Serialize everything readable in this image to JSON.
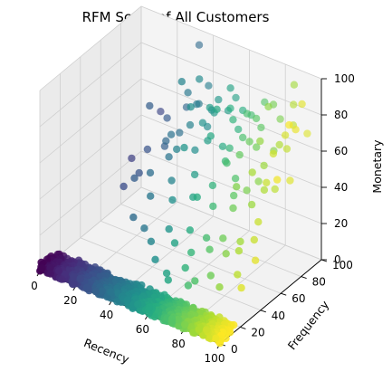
{
  "chart_data": {
    "type": "scatter3d",
    "title": "RFM Score of All Customers",
    "xlabel": "Recency",
    "ylabel": "Frequency",
    "zlabel": "Monetary",
    "xlim": [
      0,
      100
    ],
    "ylim": [
      0,
      100
    ],
    "zlim": [
      0,
      100
    ],
    "x_ticks": [
      "0",
      "20",
      "40",
      "60",
      "80",
      "100"
    ],
    "y_ticks": [
      "0",
      "20",
      "40",
      "60",
      "80",
      "100"
    ],
    "z_ticks": [
      "0",
      "20",
      "40",
      "60",
      "80",
      "100"
    ],
    "grid": true,
    "colormap": "viridis",
    "color_by": "Recency",
    "dense_cluster": {
      "x_range": [
        0,
        100
      ],
      "y_range": [
        0,
        15
      ],
      "z_range": [
        0,
        5
      ],
      "approx_points": 1400
    },
    "points": [
      [
        35,
        95,
        95
      ],
      [
        45,
        60,
        95
      ],
      [
        48,
        72,
        92
      ],
      [
        30,
        55,
        78
      ],
      [
        40,
        75,
        80
      ],
      [
        50,
        60,
        83
      ],
      [
        55,
        70,
        80
      ],
      [
        42,
        80,
        72
      ],
      [
        58,
        85,
        85
      ],
      [
        60,
        68,
        82
      ],
      [
        38,
        62,
        62
      ],
      [
        45,
        55,
        60
      ],
      [
        52,
        50,
        66
      ],
      [
        60,
        62,
        70
      ],
      [
        65,
        75,
        75
      ],
      [
        70,
        80,
        78
      ],
      [
        48,
        80,
        62
      ],
      [
        55,
        88,
        70
      ],
      [
        62,
        90,
        72
      ],
      [
        66,
        70,
        62
      ],
      [
        70,
        60,
        60
      ],
      [
        75,
        85,
        70
      ],
      [
        78,
        75,
        65
      ],
      [
        80,
        95,
        72
      ],
      [
        82,
        85,
        60
      ],
      [
        85,
        70,
        60
      ],
      [
        88,
        80,
        68
      ],
      [
        90,
        90,
        75
      ],
      [
        92,
        60,
        58
      ],
      [
        95,
        95,
        70
      ],
      [
        30,
        40,
        45
      ],
      [
        36,
        45,
        48
      ],
      [
        40,
        38,
        40
      ],
      [
        45,
        50,
        45
      ],
      [
        50,
        42,
        40
      ],
      [
        55,
        55,
        50
      ],
      [
        58,
        48,
        42
      ],
      [
        62,
        45,
        45
      ],
      [
        65,
        55,
        48
      ],
      [
        68,
        50,
        40
      ],
      [
        72,
        65,
        50
      ],
      [
        75,
        58,
        45
      ],
      [
        78,
        52,
        42
      ],
      [
        80,
        62,
        48
      ],
      [
        82,
        70,
        50
      ],
      [
        85,
        58,
        44
      ],
      [
        88,
        65,
        50
      ],
      [
        90,
        72,
        48
      ],
      [
        92,
        52,
        40
      ],
      [
        95,
        78,
        52
      ],
      [
        35,
        30,
        30
      ],
      [
        40,
        32,
        25
      ],
      [
        46,
        28,
        22
      ],
      [
        52,
        35,
        28
      ],
      [
        58,
        30,
        25
      ],
      [
        62,
        38,
        30
      ],
      [
        66,
        32,
        22
      ],
      [
        70,
        40,
        28
      ],
      [
        74,
        36,
        25
      ],
      [
        78,
        42,
        30
      ],
      [
        82,
        38,
        25
      ],
      [
        86,
        45,
        30
      ],
      [
        88,
        40,
        28
      ],
      [
        92,
        48,
        32
      ],
      [
        96,
        42,
        25
      ],
      [
        50,
        25,
        15
      ],
      [
        58,
        22,
        12
      ],
      [
        65,
        28,
        15
      ],
      [
        72,
        25,
        12
      ],
      [
        78,
        30,
        15
      ],
      [
        84,
        28,
        12
      ],
      [
        90,
        35,
        18
      ],
      [
        95,
        30,
        15
      ],
      [
        60,
        20,
        10
      ],
      [
        70,
        22,
        10
      ],
      [
        98,
        60,
        62
      ],
      [
        97,
        80,
        80
      ],
      [
        99,
        70,
        88
      ],
      [
        96,
        88,
        90
      ],
      [
        94,
        75,
        78
      ],
      [
        93,
        65,
        72
      ],
      [
        91,
        82,
        66
      ],
      [
        89,
        92,
        85
      ],
      [
        87,
        55,
        64
      ],
      [
        86,
        98,
        92
      ],
      [
        84,
        68,
        74
      ],
      [
        83,
        78,
        88
      ],
      [
        81,
        50,
        56
      ],
      [
        79,
        90,
        82
      ],
      [
        77,
        70,
        70
      ],
      [
        76,
        62,
        66
      ],
      [
        74,
        82,
        76
      ],
      [
        73,
        92,
        80
      ],
      [
        71,
        74,
        68
      ],
      [
        69,
        86,
        74
      ],
      [
        67,
        64,
        58
      ],
      [
        64,
        82,
        66
      ],
      [
        63,
        76,
        80
      ],
      [
        61,
        72,
        60
      ],
      [
        57,
        92,
        76
      ],
      [
        56,
        66,
        64
      ],
      [
        54,
        76,
        74
      ],
      [
        53,
        82,
        78
      ],
      [
        51,
        70,
        70
      ],
      [
        49,
        66,
        56
      ],
      [
        47,
        86,
        68
      ],
      [
        44,
        70,
        66
      ],
      [
        43,
        90,
        78
      ],
      [
        41,
        84,
        70
      ],
      [
        39,
        58,
        52
      ],
      [
        37,
        72,
        58
      ],
      [
        34,
        64,
        56
      ],
      [
        33,
        86,
        64
      ],
      [
        31,
        68,
        50
      ],
      [
        29,
        74,
        62
      ],
      [
        27,
        50,
        42
      ],
      [
        26,
        60,
        50
      ],
      [
        24,
        40,
        38
      ],
      [
        22,
        80,
        60
      ],
      [
        20,
        55,
        45
      ]
    ]
  }
}
